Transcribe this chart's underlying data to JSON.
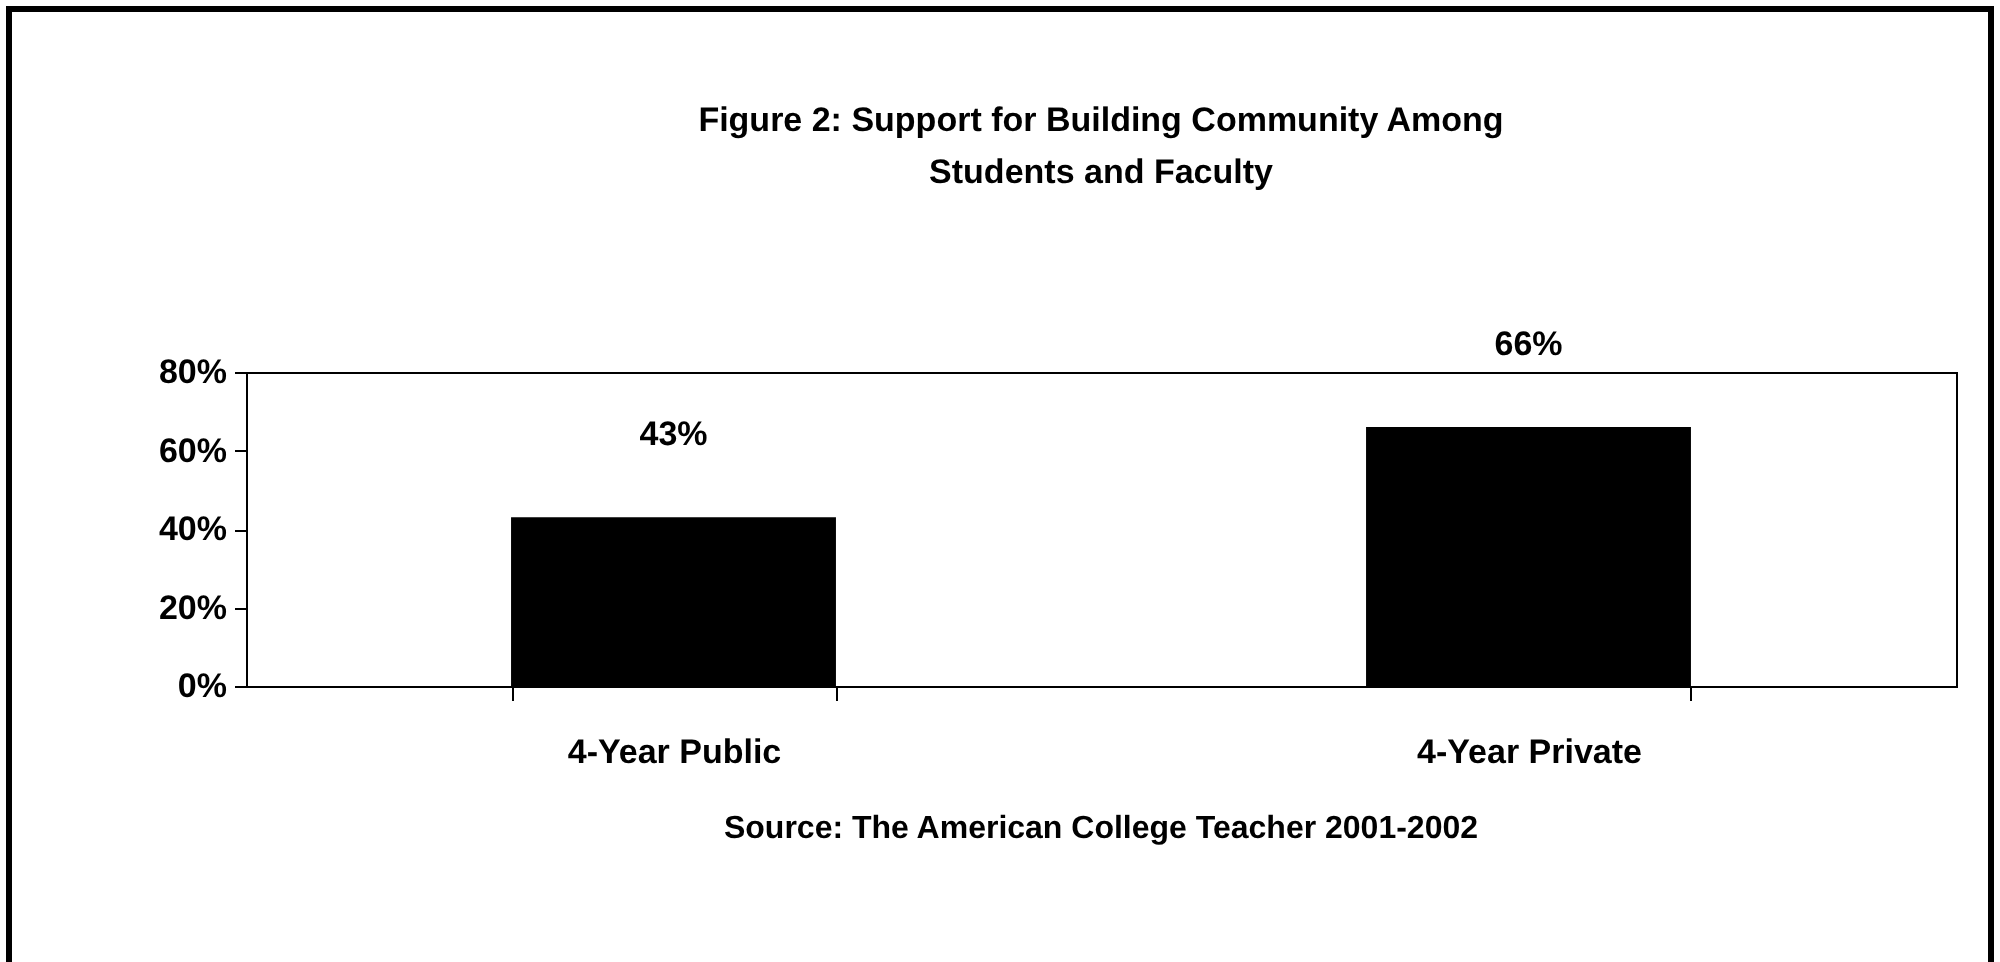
{
  "chart_data": {
    "type": "bar",
    "title": "Figure 2:  Support for Building Community Among Students and Faculty",
    "categories": [
      "4-Year Public",
      "4-Year Private"
    ],
    "values": [
      43,
      66
    ],
    "value_labels": [
      "43%",
      "66%"
    ],
    "color": "#000000",
    "ylim": [
      0,
      80
    ],
    "yticks": [
      {
        "value": 0,
        "label": "0%"
      },
      {
        "value": 20,
        "label": "20%"
      },
      {
        "value": 40,
        "label": "40%"
      },
      {
        "value": 60,
        "label": "60%"
      },
      {
        "value": 80,
        "label": "80%"
      }
    ],
    "grid": false,
    "annotations": [
      "Source: The American College Teacher 2001-2002"
    ]
  }
}
